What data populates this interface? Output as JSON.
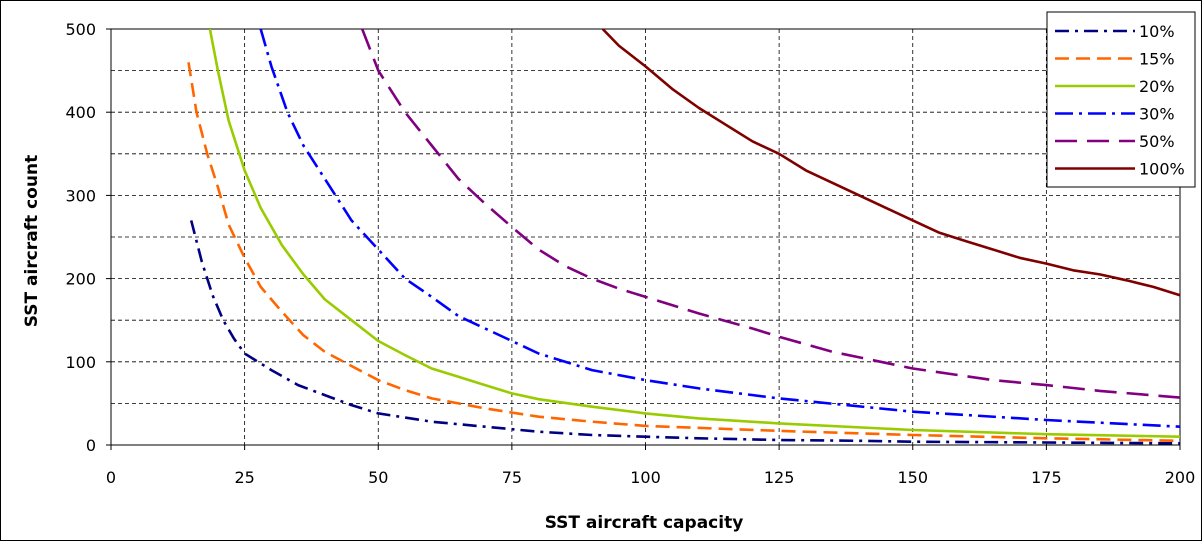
{
  "chart_data": {
    "type": "line",
    "title": "",
    "xlabel": "SST aircraft capacity",
    "ylabel": "SST aircraft count",
    "xlim": [
      0,
      200
    ],
    "ylim": [
      0,
      500
    ],
    "x_ticks": [
      0,
      25,
      50,
      75,
      100,
      125,
      150,
      175,
      200
    ],
    "y_ticks": [
      0,
      100,
      200,
      300,
      400,
      500
    ],
    "grid": "dashed major and minor",
    "legend_position": "top-right",
    "series": [
      {
        "name": "10%",
        "color": "#000080",
        "dash": "long-dot",
        "points": [
          [
            15,
            270
          ],
          [
            17,
            220
          ],
          [
            19,
            180
          ],
          [
            21,
            150
          ],
          [
            23,
            128
          ],
          [
            25,
            110
          ],
          [
            30,
            90
          ],
          [
            35,
            72
          ],
          [
            40,
            60
          ],
          [
            45,
            48
          ],
          [
            50,
            38
          ],
          [
            60,
            28
          ],
          [
            70,
            22
          ],
          [
            80,
            16
          ],
          [
            90,
            12
          ],
          [
            100,
            10
          ],
          [
            110,
            8
          ],
          [
            125,
            6
          ],
          [
            140,
            5
          ],
          [
            150,
            4
          ],
          [
            175,
            3
          ],
          [
            200,
            2
          ]
        ]
      },
      {
        "name": "15%",
        "color": "#FF6600",
        "dash": "dash",
        "points": [
          [
            14.5,
            460
          ],
          [
            16,
            400
          ],
          [
            18,
            350
          ],
          [
            20,
            310
          ],
          [
            22,
            265
          ],
          [
            25,
            225
          ],
          [
            28,
            190
          ],
          [
            32,
            160
          ],
          [
            36,
            132
          ],
          [
            40,
            112
          ],
          [
            45,
            95
          ],
          [
            50,
            78
          ],
          [
            55,
            66
          ],
          [
            60,
            56
          ],
          [
            70,
            44
          ],
          [
            80,
            34
          ],
          [
            90,
            28
          ],
          [
            100,
            23
          ],
          [
            125,
            17
          ],
          [
            150,
            12
          ],
          [
            175,
            8
          ],
          [
            200,
            5
          ]
        ]
      },
      {
        "name": "20%",
        "color": "#99CC00",
        "dash": "solid",
        "points": [
          [
            18.5,
            500
          ],
          [
            20,
            450
          ],
          [
            22,
            390
          ],
          [
            25,
            330
          ],
          [
            28,
            285
          ],
          [
            32,
            240
          ],
          [
            36,
            205
          ],
          [
            40,
            175
          ],
          [
            45,
            150
          ],
          [
            50,
            125
          ],
          [
            55,
            108
          ],
          [
            60,
            92
          ],
          [
            65,
            82
          ],
          [
            70,
            72
          ],
          [
            75,
            62
          ],
          [
            80,
            55
          ],
          [
            90,
            46
          ],
          [
            100,
            38
          ],
          [
            110,
            32
          ],
          [
            125,
            26
          ],
          [
            150,
            18
          ],
          [
            175,
            13
          ],
          [
            200,
            10
          ]
        ]
      },
      {
        "name": "30%",
        "color": "#0000FF",
        "dash": "dash-dot",
        "points": [
          [
            28,
            500
          ],
          [
            30,
            455
          ],
          [
            33,
            400
          ],
          [
            36,
            360
          ],
          [
            40,
            320
          ],
          [
            45,
            270
          ],
          [
            50,
            235
          ],
          [
            55,
            200
          ],
          [
            60,
            178
          ],
          [
            65,
            155
          ],
          [
            70,
            140
          ],
          [
            75,
            125
          ],
          [
            80,
            110
          ],
          [
            90,
            90
          ],
          [
            100,
            78
          ],
          [
            110,
            68
          ],
          [
            125,
            56
          ],
          [
            150,
            40
          ],
          [
            175,
            30
          ],
          [
            200,
            22
          ]
        ]
      },
      {
        "name": "50%",
        "color": "#800080",
        "dash": "long-dash",
        "points": [
          [
            47,
            500
          ],
          [
            50,
            450
          ],
          [
            55,
            400
          ],
          [
            60,
            360
          ],
          [
            65,
            320
          ],
          [
            70,
            290
          ],
          [
            75,
            262
          ],
          [
            80,
            235
          ],
          [
            85,
            215
          ],
          [
            90,
            200
          ],
          [
            95,
            188
          ],
          [
            100,
            178
          ],
          [
            110,
            158
          ],
          [
            120,
            140
          ],
          [
            125,
            130
          ],
          [
            135,
            112
          ],
          [
            150,
            92
          ],
          [
            165,
            78
          ],
          [
            175,
            72
          ],
          [
            185,
            65
          ],
          [
            200,
            57
          ]
        ]
      },
      {
        "name": "100%",
        "color": "#800000",
        "dash": "solid",
        "points": [
          [
            92,
            500
          ],
          [
            95,
            480
          ],
          [
            100,
            455
          ],
          [
            105,
            428
          ],
          [
            110,
            405
          ],
          [
            115,
            385
          ],
          [
            120,
            365
          ],
          [
            125,
            350
          ],
          [
            130,
            330
          ],
          [
            135,
            315
          ],
          [
            140,
            300
          ],
          [
            145,
            285
          ],
          [
            150,
            270
          ],
          [
            155,
            255
          ],
          [
            160,
            245
          ],
          [
            165,
            235
          ],
          [
            170,
            225
          ],
          [
            175,
            218
          ],
          [
            180,
            210
          ],
          [
            185,
            205
          ],
          [
            190,
            198
          ],
          [
            195,
            190
          ],
          [
            200,
            180
          ]
        ]
      }
    ]
  }
}
